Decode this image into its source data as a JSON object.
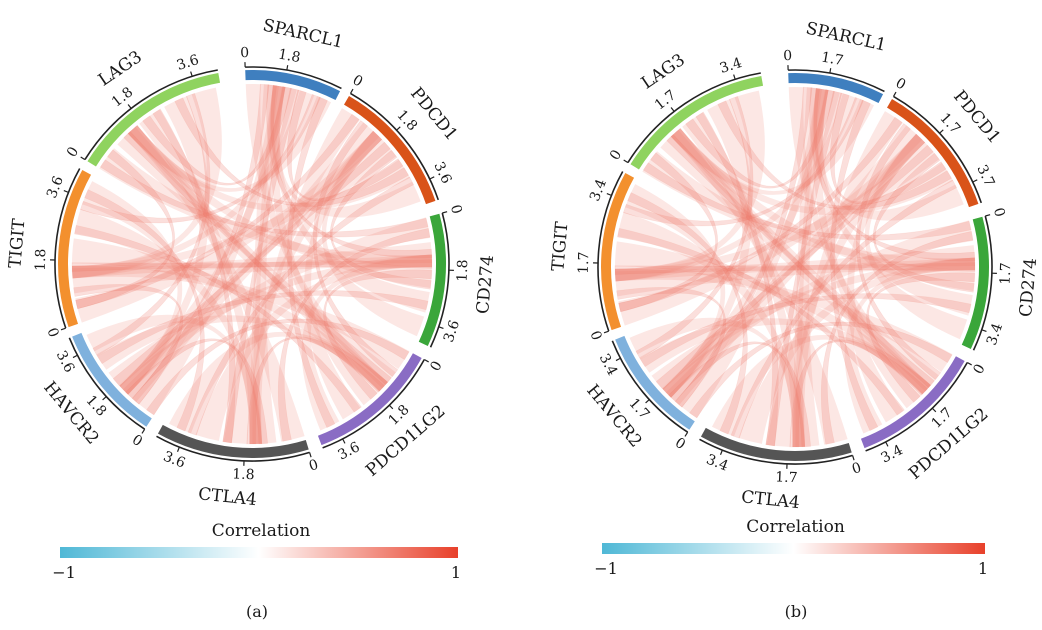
{
  "chart_data": [
    {
      "type": "chord",
      "panel_label": "(a)",
      "colorbar": {
        "title": "Correlation",
        "min_label": "−1",
        "max_label": "1",
        "colors": [
          "#4fb8d6",
          "#ffffff",
          "#e8402a"
        ]
      },
      "segments": [
        {
          "name": "SPARCL1",
          "color": "#3f7fbf",
          "ticks": [
            "0",
            "1.8"
          ]
        },
        {
          "name": "PDCD1",
          "color": "#d95319",
          "ticks": [
            "0",
            "1.8",
            "3.6"
          ]
        },
        {
          "name": "CD274",
          "color": "#3aa63a",
          "ticks": [
            "0",
            "1.8",
            "3.6"
          ]
        },
        {
          "name": "PDCD1LG2",
          "color": "#8a6cc4",
          "ticks": [
            "0",
            "1.8",
            "3.6"
          ]
        },
        {
          "name": "CTLA4",
          "color": "#555555",
          "ticks": [
            "0",
            "1.8",
            "3.6"
          ]
        },
        {
          "name": "HAVCR2",
          "color": "#7fb1dd",
          "ticks": [
            "0",
            "1.8",
            "3.6"
          ]
        },
        {
          "name": "TIGIT",
          "color": "#f3902e",
          "ticks": [
            "0",
            "1.8",
            "3.6"
          ]
        },
        {
          "name": "LAG3",
          "color": "#8fd35f",
          "ticks": [
            "0",
            "1.8",
            "3.6"
          ]
        }
      ]
    },
    {
      "type": "chord",
      "panel_label": "(b)",
      "colorbar": {
        "title": "Correlation",
        "min_label": "−1",
        "max_label": "1",
        "colors": [
          "#4fb8d6",
          "#ffffff",
          "#e8402a"
        ]
      },
      "segments": [
        {
          "name": "SPARCL1",
          "color": "#3f7fbf",
          "ticks": [
            "0",
            "1.7"
          ]
        },
        {
          "name": "PDCD1",
          "color": "#d95319",
          "ticks": [
            "0",
            "1.7",
            "3.7"
          ]
        },
        {
          "name": "CD274",
          "color": "#3aa63a",
          "ticks": [
            "0",
            "1.7",
            "3.4"
          ]
        },
        {
          "name": "PDCD1LG2",
          "color": "#8a6cc4",
          "ticks": [
            "0",
            "1.7",
            "3.4"
          ]
        },
        {
          "name": "CTLA4",
          "color": "#555555",
          "ticks": [
            "0",
            "1.7",
            "3.4"
          ]
        },
        {
          "name": "HAVCR2",
          "color": "#7fb1dd",
          "ticks": [
            "0",
            "1.7",
            "3.4"
          ]
        },
        {
          "name": "TIGIT",
          "color": "#f3902e",
          "ticks": [
            "0",
            "1.7",
            "3.4"
          ]
        },
        {
          "name": "LAG3",
          "color": "#8fd35f",
          "ticks": [
            "0",
            "1.7",
            "3.4"
          ]
        }
      ]
    }
  ]
}
